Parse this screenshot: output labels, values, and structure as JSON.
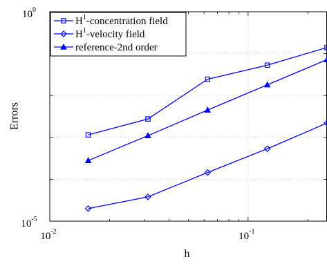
{
  "chart_data": {
    "type": "line",
    "xscale": "log",
    "yscale": "log",
    "xlim": [
      0.01,
      0.25
    ],
    "ylim": [
      1e-05,
      1
    ],
    "xlabel": "h",
    "ylabel": "Errors",
    "grid": true,
    "legend_position": "top-left",
    "x_ticks": [
      {
        "base": "10",
        "exp": "-2"
      },
      {
        "base": "10",
        "exp": "-1"
      }
    ],
    "y_ticks": [
      {
        "base": "10",
        "exp": "0"
      },
      {
        "base": "10",
        "exp": "-5"
      }
    ],
    "series": [
      {
        "name_main": "H",
        "name_sup": "1",
        "name_rest": "-concentration field",
        "marker": "square",
        "color": "#0000FF",
        "x": [
          0.015625,
          0.03125,
          0.0625,
          0.125,
          0.25
        ],
        "y": [
          0.00115,
          0.00275,
          0.0245,
          0.053,
          0.14
        ]
      },
      {
        "name_main": "H",
        "name_sup": "1",
        "name_rest": "-velocity field",
        "marker": "diamond",
        "color": "#0000FF",
        "x": [
          0.015625,
          0.03125,
          0.0625,
          0.125,
          0.25
        ],
        "y": [
          2e-05,
          3.8e-05,
          0.000145,
          0.000535,
          0.0022
        ]
      },
      {
        "name_main": "reference-2nd order",
        "name_sup": "",
        "name_rest": "",
        "marker": "triangle",
        "color": "#0000FF",
        "x": [
          0.015625,
          0.03125,
          0.0625,
          0.125,
          0.25
        ],
        "y": [
          0.00028,
          0.0011,
          0.0045,
          0.018,
          0.072
        ]
      }
    ]
  }
}
